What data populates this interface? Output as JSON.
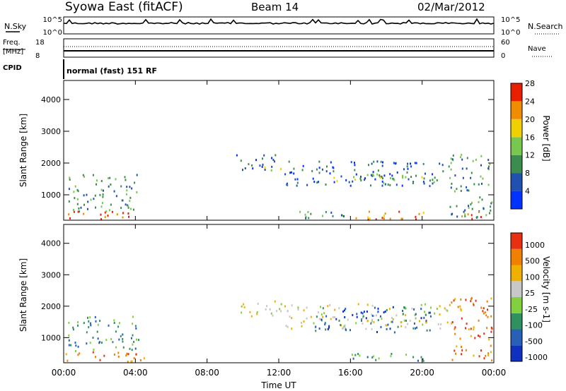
{
  "header": {
    "title": "Syowa East (fitACF)",
    "beam": "Beam 14",
    "date": "02/Mar/2012"
  },
  "strips": {
    "nsky_label": "N.Sky",
    "nsearch_label": "N.Search",
    "nsky_ticks": [
      "10^5",
      "10^0"
    ],
    "nsearch_ticks": [
      "10^5",
      "10^0"
    ],
    "freq_label": "Freq.",
    "freq_unit": "[MHz]",
    "freq_ticks": [
      "18",
      "8"
    ],
    "nave_label": "Nave",
    "nave_ticks": [
      "60",
      "0"
    ],
    "cpid_label": "CPID",
    "cpid_text": "normal (fast) 151 RF"
  },
  "chart_data": [
    {
      "type": "heatmap",
      "panel": "power",
      "ylabel": "Slant Range [km]",
      "yticks": [
        "1000",
        "2000",
        "3000",
        "4000"
      ],
      "ylim": [
        200,
        4600
      ],
      "xlim": [
        0,
        24
      ],
      "colorbar_label": "Power [dB]",
      "colorbar_ticks": [
        "4",
        "8",
        "12",
        "16",
        "20",
        "24",
        "28"
      ],
      "colors": [
        "#0033ff",
        "#2050b0",
        "#3c8c50",
        "#78c850",
        "#f0d000",
        "#f08c00",
        "#e82000"
      ],
      "scatter_regions": [
        {
          "t": [
            0.1,
            4.5
          ],
          "r": [
            250,
            500
          ],
          "level": 6
        },
        {
          "t": [
            0.2,
            4.2
          ],
          "r": [
            500,
            1700
          ],
          "level": 2
        },
        {
          "t": [
            9.6,
            11.8
          ],
          "r": [
            1700,
            2300
          ],
          "level": 1
        },
        {
          "t": [
            11.0,
            12.2
          ],
          "r": [
            1700,
            1900
          ],
          "level": 4
        },
        {
          "t": [
            12.3,
            21.5
          ],
          "r": [
            1300,
            2100
          ],
          "level": 1
        },
        {
          "t": [
            15.0,
            21.0
          ],
          "r": [
            1400,
            1700
          ],
          "level": 3
        },
        {
          "t": [
            16.0,
            20.2
          ],
          "r": [
            250,
            550
          ],
          "level": 5
        },
        {
          "t": [
            12.0,
            16.0
          ],
          "r": [
            250,
            500
          ],
          "level": 2
        },
        {
          "t": [
            21.5,
            23.9
          ],
          "r": [
            300,
            2300
          ],
          "level": 2
        },
        {
          "t": [
            22.0,
            23.8
          ],
          "r": [
            250,
            500
          ],
          "level": 6
        }
      ]
    },
    {
      "type": "heatmap",
      "panel": "velocity",
      "ylabel": "Slant Range [km]",
      "xlabel": "Time UT",
      "yticks": [
        "1000",
        "2000",
        "3000",
        "4000"
      ],
      "ylim": [
        200,
        4600
      ],
      "xlim": [
        0,
        24
      ],
      "xticks": [
        "00:00",
        "04:00",
        "08:00",
        "12:00",
        "16:00",
        "20:00",
        "00:00"
      ],
      "colorbar_label": "Velocity [m s-1]",
      "colorbar_ticks": [
        "1000",
        "500",
        "100",
        "25",
        "-25",
        "-100",
        "-500",
        "-1000"
      ],
      "colors": [
        "#1030c0",
        "#2860b8",
        "#309060",
        "#80d040",
        "#c8c8c8",
        "#f0b000",
        "#f08000",
        "#e83010"
      ],
      "scatter_regions": [
        {
          "t": [
            0.1,
            4.5
          ],
          "r": [
            250,
            600
          ],
          "level": 6
        },
        {
          "t": [
            0.2,
            4.2
          ],
          "r": [
            600,
            1700
          ],
          "level": 2
        },
        {
          "t": [
            9.6,
            12.2
          ],
          "r": [
            1700,
            2200
          ],
          "level": 4
        },
        {
          "t": [
            12.3,
            21.5
          ],
          "r": [
            1300,
            2100
          ],
          "level": 4
        },
        {
          "t": [
            14.0,
            20.5
          ],
          "r": [
            1200,
            2000
          ],
          "level": 1
        },
        {
          "t": [
            16.0,
            20.2
          ],
          "r": [
            250,
            550
          ],
          "level": 2
        },
        {
          "t": [
            21.5,
            23.9
          ],
          "r": [
            300,
            2300
          ],
          "level": 6
        }
      ]
    }
  ]
}
